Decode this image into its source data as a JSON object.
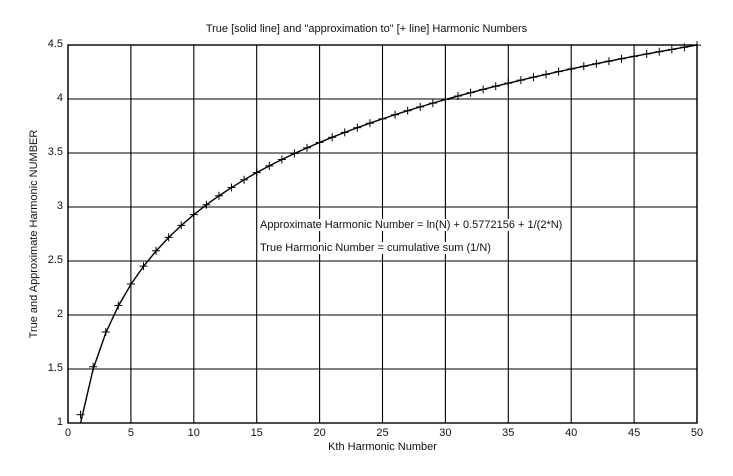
{
  "chart_data": {
    "type": "line",
    "title": "True [solid line] and \"approximation to\" [+ line] Harmonic Numbers",
    "xlabel": "Kth Harmonic Number",
    "ylabel": "True and Approximate Harmonic NUMBER",
    "xlim": [
      0,
      50
    ],
    "ylim": [
      1,
      4.5
    ],
    "grid": true,
    "xticks": [
      "0",
      "5",
      "10",
      "15",
      "20",
      "25",
      "30",
      "35",
      "40",
      "45",
      "50"
    ],
    "yticks": [
      "1",
      "1.5",
      "2",
      "2.5",
      "3",
      "3.5",
      "4",
      "4.5"
    ],
    "annotations": [
      "Approximate Harmonic Number = ln(N) + 0.5772156 + 1/(2*N)",
      "True Harmonic Number = cumulative sum (1/N)"
    ],
    "x": [
      1,
      2,
      3,
      4,
      5,
      6,
      7,
      8,
      9,
      10,
      11,
      12,
      13,
      14,
      15,
      16,
      17,
      18,
      19,
      20,
      21,
      22,
      23,
      24,
      25,
      26,
      27,
      28,
      29,
      30,
      31,
      32,
      33,
      34,
      35,
      36,
      37,
      38,
      39,
      40,
      41,
      42,
      43,
      44,
      45,
      46,
      47,
      48,
      49,
      50
    ],
    "series": [
      {
        "name": "True Harmonic Number (solid line)",
        "style": "solid",
        "values": [
          1.0,
          1.5,
          1.8333,
          2.0833,
          2.2833,
          2.45,
          2.5929,
          2.7179,
          2.829,
          2.929,
          3.0199,
          3.1032,
          3.1801,
          3.2516,
          3.3182,
          3.3807,
          3.4396,
          3.4951,
          3.5477,
          3.5977,
          3.6454,
          3.6908,
          3.7343,
          3.776,
          3.816,
          3.8544,
          3.8915,
          3.9272,
          3.9617,
          3.995,
          4.0272,
          4.0585,
          4.0888,
          4.1182,
          4.1468,
          4.1746,
          4.2016,
          4.2279,
          4.2535,
          4.2785,
          4.3029,
          4.3267,
          4.35,
          4.3727,
          4.3949,
          4.4167,
          4.4379,
          4.4588,
          4.4792,
          4.4992
        ]
      },
      {
        "name": "Approximate Harmonic Number (+ markers)",
        "style": "plus",
        "values": [
          1.0772,
          1.5204,
          1.8425,
          2.0885,
          2.2867,
          2.4523,
          2.5945,
          2.7191,
          2.83,
          2.9298,
          3.0206,
          3.1038,
          3.1806,
          3.252,
          3.3186,
          3.381,
          3.4399,
          3.4954,
          3.5479,
          3.5979,
          3.6456,
          3.691,
          3.7345,
          3.7761,
          3.8161,
          3.8545,
          3.8916,
          3.9273,
          3.9618,
          3.9951,
          4.0273,
          4.0586,
          4.0889,
          4.1183,
          4.1469,
          4.1747,
          4.2017,
          4.228,
          4.2536,
          4.2786,
          4.303,
          4.3268,
          4.35,
          4.3727,
          4.3949,
          4.4167,
          4.438,
          4.4588,
          4.4792,
          4.4992
        ]
      }
    ]
  }
}
